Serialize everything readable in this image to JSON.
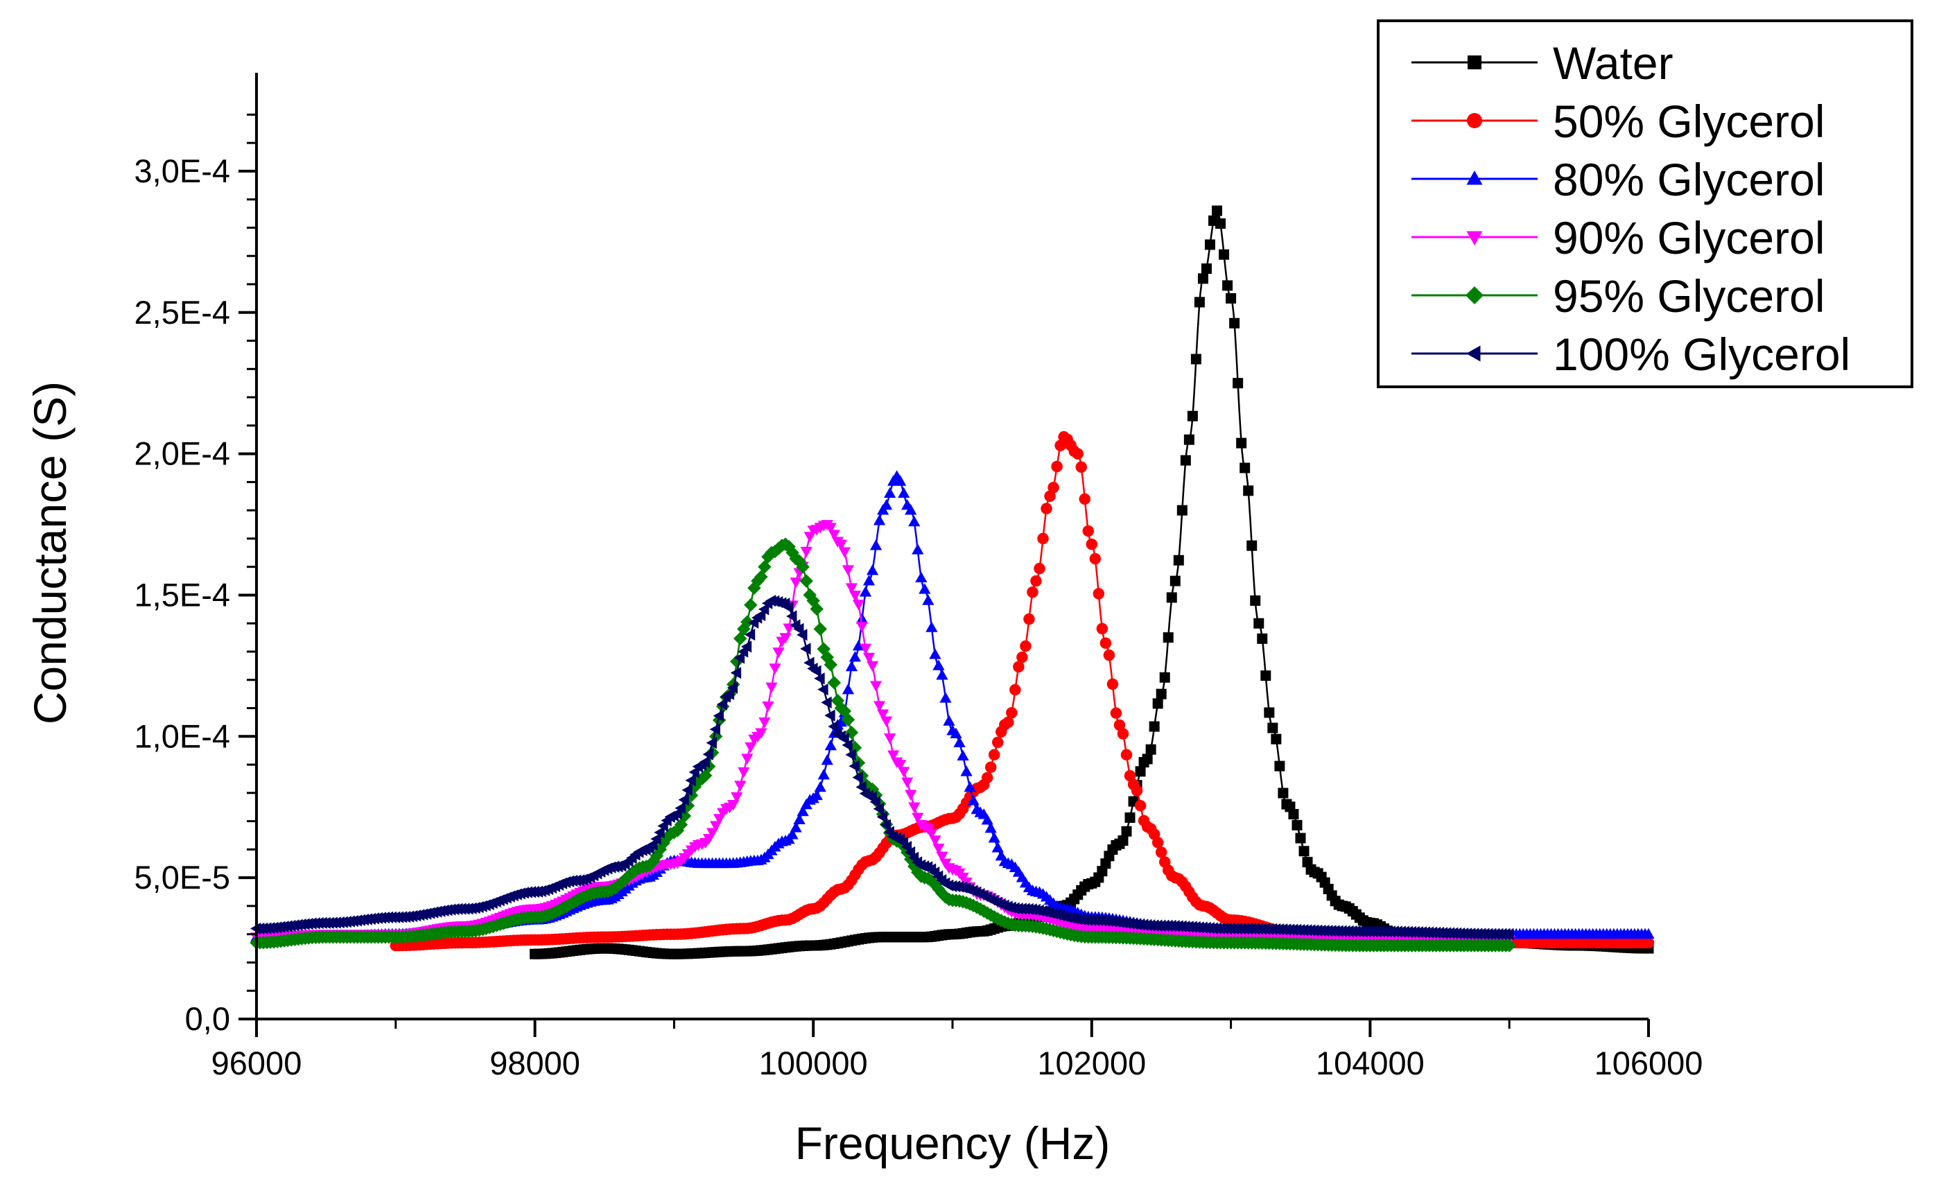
{
  "chart_data": {
    "type": "line",
    "title": "",
    "xlabel": "Frequency (Hz)",
    "ylabel": "Conductance (S)",
    "xlim": [
      96000,
      106000
    ],
    "ylim": [
      0,
      0.000325
    ],
    "x_ticks": [
      {
        "value": 96000,
        "label": "96000"
      },
      {
        "value": 98000,
        "label": "98000"
      },
      {
        "value": 100000,
        "label": "100000"
      },
      {
        "value": 102000,
        "label": "102000"
      },
      {
        "value": 104000,
        "label": "104000"
      },
      {
        "value": 106000,
        "label": "106000"
      }
    ],
    "y_ticks": [
      {
        "value": 0,
        "label": "0,0"
      },
      {
        "value": 5e-05,
        "label": "5,0E-5"
      },
      {
        "value": 0.0001,
        "label": "1,0E-4"
      },
      {
        "value": 0.00015,
        "label": "1,5E-4"
      },
      {
        "value": 0.0002,
        "label": "2,0E-4"
      },
      {
        "value": 0.00025,
        "label": "2,5E-4"
      },
      {
        "value": 0.0003,
        "label": "3,0E-4"
      }
    ],
    "grid": false,
    "legend_position": "top-right",
    "series": [
      {
        "name": "Water",
        "color": "#000000",
        "marker": "square",
        "x": [
          98000,
          98500,
          99000,
          99500,
          100000,
          100500,
          100800,
          101000,
          101200,
          101400,
          101600,
          101800,
          102000,
          102200,
          102400,
          102500,
          102600,
          102700,
          102800,
          102900,
          103000,
          103100,
          103200,
          103300,
          103400,
          103600,
          103800,
          104000,
          104200,
          104500,
          105000,
          105500,
          106000
        ],
        "y": [
          2.3e-05,
          2.5e-05,
          2.3e-05,
          2.4e-05,
          2.6e-05,
          2.9e-05,
          2.9e-05,
          3e-05,
          3.1e-05,
          3.3e-05,
          3.6e-05,
          4e-05,
          4.8e-05,
          6.2e-05,
          9.2e-05,
          0.000115,
          0.000155,
          0.000205,
          0.000262,
          0.000286,
          0.000255,
          0.000195,
          0.00014,
          0.000103,
          7.6e-05,
          5.2e-05,
          4e-05,
          3.4e-05,
          3e-05,
          2.8e-05,
          2.7e-05,
          2.6e-05,
          2.5e-05
        ]
      },
      {
        "name": "50% Glycerol",
        "color": "#ff0000",
        "marker": "circle",
        "x": [
          97000,
          97500,
          98000,
          98500,
          99000,
          99500,
          99800,
          100000,
          100200,
          100400,
          100600,
          100800,
          101000,
          101200,
          101400,
          101500,
          101600,
          101700,
          101800,
          101900,
          102000,
          102100,
          102200,
          102300,
          102400,
          102600,
          102800,
          103000,
          103500,
          104000,
          104500,
          105000,
          106000
        ],
        "y": [
          2.6e-05,
          2.7e-05,
          2.8e-05,
          2.9e-05,
          3e-05,
          3.2e-05,
          3.5e-05,
          3.9e-05,
          4.6e-05,
          5.6e-05,
          6.5e-05,
          6.8e-05,
          7.1e-05,
          8.2e-05,
          0.000105,
          0.000128,
          0.000155,
          0.000185,
          0.000206,
          0.0002,
          0.000168,
          0.000133,
          0.000104,
          8.3e-05,
          6.8e-05,
          5e-05,
          4e-05,
          3.5e-05,
          3e-05,
          2.8e-05,
          2.8e-05,
          2.7e-05,
          2.7e-05
        ]
      },
      {
        "name": "80% Glycerol",
        "color": "#0000ff",
        "marker": "triangle-up",
        "x": [
          96000,
          96500,
          97000,
          97500,
          98000,
          98500,
          98800,
          99000,
          99200,
          99400,
          99600,
          99800,
          100000,
          100200,
          100300,
          100400,
          100500,
          100600,
          100700,
          100800,
          100900,
          101000,
          101200,
          101400,
          101600,
          101800,
          102000,
          102500,
          103000,
          104000,
          105000,
          106000
        ],
        "y": [
          2.9e-05,
          2.9e-05,
          3e-05,
          3.2e-05,
          3.5e-05,
          4.2e-05,
          5e-05,
          5.6e-05,
          5.5e-05,
          5.5e-05,
          5.6e-05,
          6.3e-05,
          7.8e-05,
          0.000105,
          0.000128,
          0.000155,
          0.00018,
          0.000192,
          0.00018,
          0.000152,
          0.000125,
          0.000102,
          7.3e-05,
          5.5e-05,
          4.5e-05,
          3.9e-05,
          3.6e-05,
          3.3e-05,
          3.1e-05,
          3e-05,
          3e-05,
          3e-05
        ]
      },
      {
        "name": "90% Glycerol",
        "color": "#ff00ff",
        "marker": "triangle-down",
        "x": [
          96000,
          96500,
          97000,
          97500,
          98000,
          98500,
          99000,
          99200,
          99400,
          99600,
          99800,
          99900,
          100000,
          100100,
          100200,
          100300,
          100400,
          100500,
          100600,
          100800,
          101000,
          101200,
          101500,
          102000,
          102500,
          103000,
          104000,
          105000
        ],
        "y": [
          2.9e-05,
          3e-05,
          3e-05,
          3.3e-05,
          3.9e-05,
          4.7e-05,
          5.5e-05,
          6.2e-05,
          7.5e-05,
          0.0001,
          0.000135,
          0.000158,
          0.000173,
          0.000175,
          0.000168,
          0.00015,
          0.000128,
          0.000108,
          9.1e-05,
          6.8e-05,
          5.3e-05,
          4.4e-05,
          3.7e-05,
          3.2e-05,
          3e-05,
          2.9e-05,
          2.8e-05,
          2.8e-05
        ]
      },
      {
        "name": "95% Glycerol",
        "color": "#008000",
        "marker": "diamond",
        "x": [
          96000,
          96500,
          97000,
          97500,
          98000,
          98500,
          98800,
          99000,
          99200,
          99400,
          99500,
          99600,
          99700,
          99800,
          99900,
          100000,
          100100,
          100200,
          100400,
          100600,
          100800,
          101000,
          101500,
          102000,
          103000,
          104000,
          105000
        ],
        "y": [
          2.7e-05,
          2.9e-05,
          2.9e-05,
          3.1e-05,
          3.6e-05,
          4.5e-05,
          5.4e-05,
          6.6e-05,
          8.5e-05,
          0.000115,
          0.000138,
          0.000155,
          0.000165,
          0.000168,
          0.000162,
          0.000148,
          0.000128,
          0.00011,
          8.2e-05,
          6.3e-05,
          5e-05,
          4.2e-05,
          3.3e-05,
          2.9e-05,
          2.7e-05,
          2.6e-05,
          2.6e-05
        ]
      },
      {
        "name": "100% Glycerol",
        "color": "#000066",
        "marker": "triangle-left",
        "x": [
          96000,
          96500,
          97000,
          97500,
          98000,
          98300,
          98600,
          98800,
          99000,
          99200,
          99400,
          99500,
          99600,
          99700,
          99800,
          99900,
          100000,
          100200,
          100400,
          100600,
          100800,
          101000,
          101500,
          102000,
          102500,
          103000,
          104000,
          105000
        ],
        "y": [
          3.2e-05,
          3.4e-05,
          3.6e-05,
          3.9e-05,
          4.5e-05,
          4.9e-05,
          5.4e-05,
          6e-05,
          7.2e-05,
          9e-05,
          0.000115,
          0.00013,
          0.000142,
          0.000148,
          0.000147,
          0.000138,
          0.000124,
          0.0001,
          7.9e-05,
          6.4e-05,
          5.4e-05,
          4.7e-05,
          3.9e-05,
          3.5e-05,
          3.3e-05,
          3.2e-05,
          3.1e-05,
          3e-05
        ]
      }
    ]
  }
}
